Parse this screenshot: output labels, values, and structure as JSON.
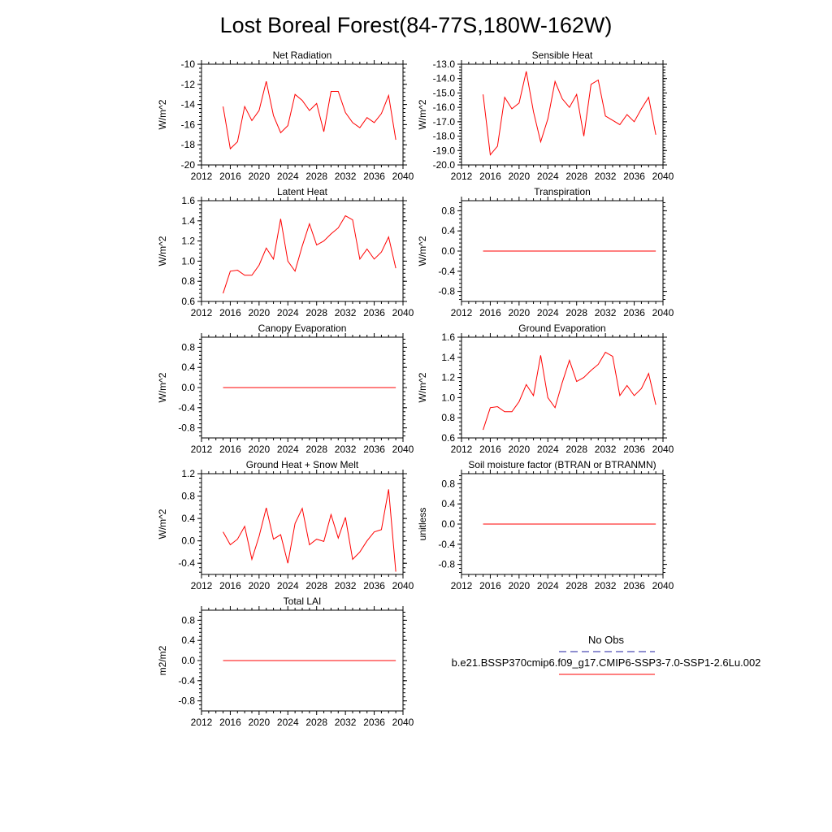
{
  "title": "Lost Boreal Forest(84-77S,180W-162W)",
  "colors": {
    "series": "#ff0000",
    "obs": "#1f1fa0",
    "axis": "#000000"
  },
  "legend": {
    "obs_label": "No Obs",
    "model_label": "b.e21.BSSP370cmip6.f09_g17.CMIP6-SSP3-7.0-SSP1-2.6Lu.002"
  },
  "chart_data": [
    {
      "type": "line",
      "title": "Net Radiation",
      "ylabel": "W/m^2",
      "xlim": [
        2012,
        2040
      ],
      "ylim": [
        -20,
        -10
      ],
      "xticks": [
        2012,
        2016,
        2020,
        2024,
        2028,
        2032,
        2036,
        2040
      ],
      "yticks": [
        -20,
        -18,
        -16,
        -14,
        -12,
        -10
      ],
      "ytick_labels": [
        "-20",
        "-18",
        "-16",
        "-14",
        "-12",
        "-10"
      ],
      "x": [
        2015,
        2016,
        2017,
        2018,
        2019,
        2020,
        2021,
        2022,
        2023,
        2024,
        2025,
        2026,
        2027,
        2028,
        2029,
        2030,
        2031,
        2032,
        2033,
        2034,
        2035,
        2036,
        2037,
        2038,
        2039
      ],
      "values": [
        -14.2,
        -18.4,
        -17.7,
        -14.2,
        -15.6,
        -14.6,
        -11.7,
        -15.1,
        -16.8,
        -16.1,
        -13.0,
        -13.6,
        -14.6,
        -13.9,
        -16.7,
        -12.7,
        -12.7,
        -14.8,
        -15.8,
        -16.3,
        -15.3,
        -15.8,
        -14.9,
        -13.1,
        -17.5
      ]
    },
    {
      "type": "line",
      "title": "Sensible Heat",
      "ylabel": "W/m^2",
      "xlim": [
        2012,
        2040
      ],
      "ylim": [
        -20,
        -13
      ],
      "xticks": [
        2012,
        2016,
        2020,
        2024,
        2028,
        2032,
        2036,
        2040
      ],
      "yticks": [
        -20,
        -19,
        -18,
        -17,
        -16,
        -15,
        -14,
        -13
      ],
      "ytick_labels": [
        "-20.0",
        "-19.0",
        "-18.0",
        "-17.0",
        "-16.0",
        "-15.0",
        "-14.0",
        "-13.0"
      ],
      "x": [
        2015,
        2016,
        2017,
        2018,
        2019,
        2020,
        2021,
        2022,
        2023,
        2024,
        2025,
        2026,
        2027,
        2028,
        2029,
        2030,
        2031,
        2032,
        2033,
        2034,
        2035,
        2036,
        2037,
        2038,
        2039
      ],
      "values": [
        -15.1,
        -19.3,
        -18.7,
        -15.3,
        -16.1,
        -15.7,
        -13.5,
        -16.3,
        -18.4,
        -16.8,
        -14.2,
        -15.4,
        -16.0,
        -15.1,
        -18.0,
        -14.4,
        -14.1,
        -16.6,
        -16.9,
        -17.2,
        -16.5,
        -17.0,
        -16.1,
        -15.3,
        -17.9
      ]
    },
    {
      "type": "line",
      "title": "Latent Heat",
      "ylabel": "W/m^2",
      "xlim": [
        2012,
        2040
      ],
      "ylim": [
        0.6,
        1.6
      ],
      "xticks": [
        2012,
        2016,
        2020,
        2024,
        2028,
        2032,
        2036,
        2040
      ],
      "yticks": [
        0.6,
        0.8,
        1.0,
        1.2,
        1.4,
        1.6
      ],
      "ytick_labels": [
        "0.6",
        "0.8",
        "1.0",
        "1.2",
        "1.4",
        "1.6"
      ],
      "x": [
        2015,
        2016,
        2017,
        2018,
        2019,
        2020,
        2021,
        2022,
        2023,
        2024,
        2025,
        2026,
        2027,
        2028,
        2029,
        2030,
        2031,
        2032,
        2033,
        2034,
        2035,
        2036,
        2037,
        2038,
        2039
      ],
      "values": [
        0.68,
        0.9,
        0.91,
        0.86,
        0.86,
        0.96,
        1.13,
        1.02,
        1.42,
        1.0,
        0.9,
        1.15,
        1.37,
        1.16,
        1.2,
        1.27,
        1.33,
        1.45,
        1.41,
        1.02,
        1.12,
        1.02,
        1.09,
        1.24,
        0.93
      ]
    },
    {
      "type": "line",
      "title": "Transpiration",
      "ylabel": "W/m^2",
      "xlim": [
        2012,
        2040
      ],
      "ylim": [
        -1.0,
        1.0
      ],
      "xticks": [
        2012,
        2016,
        2020,
        2024,
        2028,
        2032,
        2036,
        2040
      ],
      "yticks": [
        -0.8,
        -0.4,
        0.0,
        0.4,
        0.8
      ],
      "ytick_labels": [
        "-0.8",
        "-0.4",
        "0.0",
        "0.4",
        "0.8"
      ],
      "x": [
        2015,
        2039
      ],
      "values": [
        0.0,
        0.0
      ]
    },
    {
      "type": "line",
      "title": "Canopy Evaporation",
      "ylabel": "W/m^2",
      "xlim": [
        2012,
        2040
      ],
      "ylim": [
        -1.0,
        1.0
      ],
      "xticks": [
        2012,
        2016,
        2020,
        2024,
        2028,
        2032,
        2036,
        2040
      ],
      "yticks": [
        -0.8,
        -0.4,
        0.0,
        0.4,
        0.8
      ],
      "ytick_labels": [
        "-0.8",
        "-0.4",
        "0.0",
        "0.4",
        "0.8"
      ],
      "x": [
        2015,
        2039
      ],
      "values": [
        0.0,
        0.0
      ]
    },
    {
      "type": "line",
      "title": "Ground Evaporation",
      "ylabel": "W/m^2",
      "xlim": [
        2012,
        2040
      ],
      "ylim": [
        0.6,
        1.6
      ],
      "xticks": [
        2012,
        2016,
        2020,
        2024,
        2028,
        2032,
        2036,
        2040
      ],
      "yticks": [
        0.6,
        0.8,
        1.0,
        1.2,
        1.4,
        1.6
      ],
      "ytick_labels": [
        "0.6",
        "0.8",
        "1.0",
        "1.2",
        "1.4",
        "1.6"
      ],
      "x": [
        2015,
        2016,
        2017,
        2018,
        2019,
        2020,
        2021,
        2022,
        2023,
        2024,
        2025,
        2026,
        2027,
        2028,
        2029,
        2030,
        2031,
        2032,
        2033,
        2034,
        2035,
        2036,
        2037,
        2038,
        2039
      ],
      "values": [
        0.68,
        0.9,
        0.91,
        0.86,
        0.86,
        0.96,
        1.13,
        1.02,
        1.42,
        1.0,
        0.9,
        1.15,
        1.37,
        1.16,
        1.2,
        1.27,
        1.33,
        1.45,
        1.41,
        1.02,
        1.12,
        1.02,
        1.09,
        1.24,
        0.93
      ]
    },
    {
      "type": "line",
      "title": "Ground Heat + Snow Melt",
      "ylabel": "W/m^2",
      "xlim": [
        2012,
        2040
      ],
      "ylim": [
        -0.6,
        1.2
      ],
      "xticks": [
        2012,
        2016,
        2020,
        2024,
        2028,
        2032,
        2036,
        2040
      ],
      "yticks": [
        -0.4,
        0.0,
        0.4,
        0.8,
        1.2
      ],
      "ytick_labels": [
        "-0.4",
        "0.0",
        "0.4",
        "0.8",
        "1.2"
      ],
      "x": [
        2015,
        2016,
        2017,
        2018,
        2019,
        2020,
        2021,
        2022,
        2023,
        2024,
        2025,
        2026,
        2027,
        2028,
        2029,
        2030,
        2031,
        2032,
        2033,
        2034,
        2035,
        2036,
        2037,
        2038,
        2039
      ],
      "values": [
        0.16,
        -0.07,
        0.03,
        0.26,
        -0.33,
        0.08,
        0.59,
        0.03,
        0.11,
        -0.4,
        0.31,
        0.58,
        -0.07,
        0.03,
        -0.01,
        0.47,
        0.05,
        0.42,
        -0.33,
        -0.2,
        0.0,
        0.16,
        0.2,
        0.92,
        -0.55
      ]
    },
    {
      "type": "line",
      "title": "Soil moisture factor (BTRAN or BTRANMN)",
      "ylabel": "unitless",
      "xlim": [
        2012,
        2040
      ],
      "ylim": [
        -1.0,
        1.0
      ],
      "xticks": [
        2012,
        2016,
        2020,
        2024,
        2028,
        2032,
        2036,
        2040
      ],
      "yticks": [
        -0.8,
        -0.4,
        0.0,
        0.4,
        0.8
      ],
      "ytick_labels": [
        "-0.8",
        "-0.4",
        "0.0",
        "0.4",
        "0.8"
      ],
      "x": [
        2015,
        2039
      ],
      "values": [
        0.0,
        0.0
      ]
    },
    {
      "type": "line",
      "title": "Total LAI",
      "ylabel": "m2/m2",
      "xlim": [
        2012,
        2040
      ],
      "ylim": [
        -1.0,
        1.0
      ],
      "xticks": [
        2012,
        2016,
        2020,
        2024,
        2028,
        2032,
        2036,
        2040
      ],
      "yticks": [
        -0.8,
        -0.4,
        0.0,
        0.4,
        0.8
      ],
      "ytick_labels": [
        "-0.8",
        "-0.4",
        "0.0",
        "0.4",
        "0.8"
      ],
      "x": [
        2015,
        2039
      ],
      "values": [
        0.0,
        0.0
      ]
    }
  ]
}
